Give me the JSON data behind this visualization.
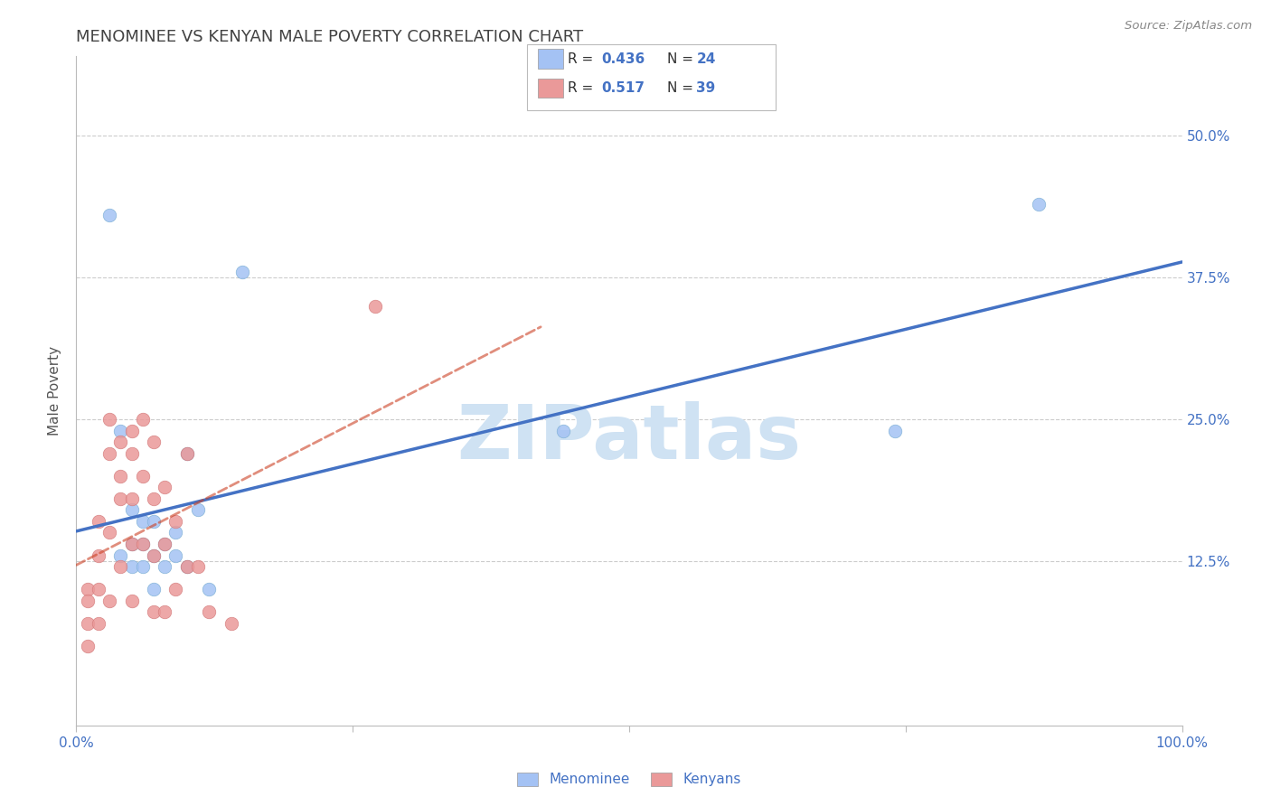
{
  "title": "MENOMINEE VS KENYAN MALE POVERTY CORRELATION CHART",
  "source": "Source: ZipAtlas.com",
  "ylabel": "Male Poverty",
  "ylabel_right_ticks": [
    "50.0%",
    "37.5%",
    "25.0%",
    "12.5%"
  ],
  "ylabel_right_vals": [
    0.5,
    0.375,
    0.25,
    0.125
  ],
  "xlim": [
    0.0,
    1.0
  ],
  "ylim": [
    -0.02,
    0.57
  ],
  "legend_blue_R": "0.436",
  "legend_blue_N": "24",
  "legend_pink_R": "0.517",
  "legend_pink_N": "39",
  "menominee_x": [
    0.03,
    0.04,
    0.04,
    0.05,
    0.05,
    0.05,
    0.06,
    0.06,
    0.06,
    0.07,
    0.07,
    0.07,
    0.08,
    0.08,
    0.09,
    0.09,
    0.1,
    0.1,
    0.11,
    0.12,
    0.15,
    0.44,
    0.74,
    0.87
  ],
  "menominee_y": [
    0.43,
    0.24,
    0.13,
    0.17,
    0.14,
    0.12,
    0.16,
    0.14,
    0.12,
    0.16,
    0.13,
    0.1,
    0.14,
    0.12,
    0.15,
    0.13,
    0.22,
    0.12,
    0.17,
    0.1,
    0.38,
    0.24,
    0.24,
    0.44
  ],
  "kenyans_x": [
    0.01,
    0.01,
    0.01,
    0.01,
    0.02,
    0.02,
    0.02,
    0.02,
    0.03,
    0.03,
    0.03,
    0.03,
    0.04,
    0.04,
    0.04,
    0.04,
    0.05,
    0.05,
    0.05,
    0.05,
    0.05,
    0.06,
    0.06,
    0.06,
    0.07,
    0.07,
    0.07,
    0.07,
    0.08,
    0.08,
    0.08,
    0.09,
    0.09,
    0.1,
    0.1,
    0.11,
    0.12,
    0.14,
    0.27
  ],
  "kenyans_y": [
    0.1,
    0.09,
    0.07,
    0.05,
    0.16,
    0.13,
    0.1,
    0.07,
    0.25,
    0.22,
    0.15,
    0.09,
    0.23,
    0.2,
    0.18,
    0.12,
    0.24,
    0.22,
    0.18,
    0.14,
    0.09,
    0.25,
    0.2,
    0.14,
    0.23,
    0.18,
    0.13,
    0.08,
    0.19,
    0.14,
    0.08,
    0.16,
    0.1,
    0.22,
    0.12,
    0.12,
    0.08,
    0.07,
    0.35
  ],
  "blue_color": "#a4c2f4",
  "pink_color": "#ea9999",
  "blue_line_color": "#4472c4",
  "pink_line_color": "#cc4125",
  "bg_color": "#ffffff",
  "grid_color": "#cccccc",
  "title_color": "#434343",
  "axis_label_color": "#4472c4",
  "watermark_color": "#cfe2f3"
}
